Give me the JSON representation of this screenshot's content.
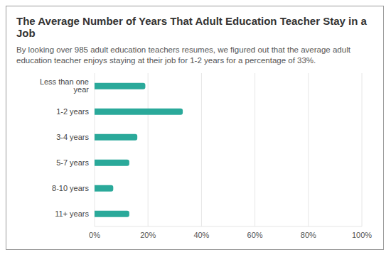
{
  "chart_data": {
    "type": "bar",
    "title": "The Average Number of Years That Adult Education Teacher Stay in a Job",
    "subtitle": "By looking over 985 adult education teachers resumes, we figured out that the average adult education teacher enjoys staying at their job for 1-2 years for a percentage of 33%.",
    "categories": [
      "Less than one year",
      "1-2 years",
      "3-4 years",
      "5-7 years",
      "8-10 years",
      "11+ years"
    ],
    "values": [
      19,
      33,
      16,
      13,
      7,
      13
    ],
    "color": "#2aa99a",
    "orientation": "horizontal",
    "xlim": [
      0,
      100
    ],
    "xticks": [
      {
        "value": 0,
        "label": "0%"
      },
      {
        "value": 20,
        "label": "20%"
      },
      {
        "value": 40,
        "label": "40%"
      },
      {
        "value": 60,
        "label": "60%"
      },
      {
        "value": 80,
        "label": "80%"
      },
      {
        "value": 100,
        "label": "100%"
      }
    ],
    "grid": true
  }
}
